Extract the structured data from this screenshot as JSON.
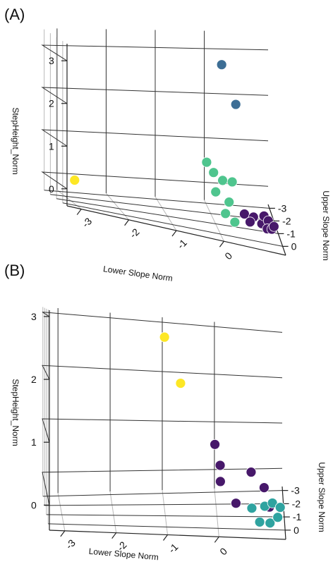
{
  "chart_data": [
    {
      "type": "scatter",
      "panel_label": "(A)",
      "xlabel": "Lower Slope Norm",
      "ylabel": "Upper Slope Norm",
      "zlabel": "StepHeight_Norm",
      "x_ticks": [
        "-3",
        "-2",
        "-1",
        "0"
      ],
      "y_ticks": [
        "-3",
        "-2",
        "-1",
        "0"
      ],
      "z_ticks": [
        "0",
        "1",
        "2",
        "3"
      ],
      "series": [
        {
          "color": "#3d6e95",
          "points": [
            [
              0.05,
              -0.25,
              3.05
            ],
            [
              0.35,
              -0.3,
              2.25
            ]
          ]
        },
        {
          "color": "#4fc58e",
          "points": [
            [
              -0.3,
              0.1,
              1.05
            ],
            [
              -0.15,
              0.05,
              0.85
            ],
            [
              0.05,
              -0.05,
              0.7
            ],
            [
              0.25,
              -0.05,
              0.7
            ],
            [
              -0.1,
              0.0,
              0.45
            ],
            [
              0.2,
              -0.2,
              0.25
            ],
            [
              0.1,
              0.05,
              0.05
            ],
            [
              0.3,
              0.0,
              -0.1
            ]
          ]
        },
        {
          "color": "#fde725",
          "points": [
            [
              -3.0,
              -0.4,
              0.15
            ]
          ]
        },
        {
          "color": "#47186a",
          "points": [
            [
              0.5,
              0.0,
              0.1
            ],
            [
              0.7,
              -0.1,
              0.05
            ],
            [
              0.6,
              0.2,
              0.0
            ],
            [
              0.85,
              0.15,
              0.0
            ],
            [
              0.9,
              0.1,
              0.15
            ],
            [
              1.0,
              0.0,
              0.05
            ],
            [
              0.95,
              0.3,
              -0.05
            ],
            [
              1.05,
              0.25,
              -0.05
            ],
            [
              1.1,
              0.2,
              0.0
            ]
          ]
        }
      ]
    },
    {
      "type": "scatter",
      "panel_label": "(B)",
      "xlabel": "Lower Slope Norm",
      "ylabel": "Upper Slope Norm",
      "zlabel": "StepHeight_Norm",
      "x_ticks": [
        "-3",
        "-2",
        "-1",
        "0"
      ],
      "y_ticks": [
        "-3",
        "-2",
        "-1",
        "0"
      ],
      "z_ticks": [
        "0",
        "1",
        "2",
        "3"
      ],
      "series": [
        {
          "color": "#fde725",
          "points": [
            [
              -1.0,
              -1.6,
              2.75
            ],
            [
              -0.7,
              -1.2,
              1.95
            ]
          ]
        },
        {
          "color": "#47186a",
          "points": [
            [
              -0.05,
              -0.6,
              0.95
            ],
            [
              0.05,
              -0.5,
              0.6
            ],
            [
              0.65,
              -0.5,
              0.5
            ],
            [
              0.05,
              -0.3,
              0.35
            ],
            [
              0.9,
              -0.4,
              0.25
            ],
            [
              0.35,
              -0.2,
              0.0
            ],
            [
              1.0,
              -0.2,
              -0.05
            ]
          ]
        },
        {
          "color": "#2fa3a0",
          "points": [
            [
              0.65,
              0.2,
              0.0
            ],
            [
              0.9,
              0.25,
              0.05
            ],
            [
              1.05,
              0.2,
              0.1
            ],
            [
              1.2,
              0.3,
              0.05
            ],
            [
              0.8,
              0.35,
              -0.2
            ],
            [
              1.0,
              0.4,
              -0.2
            ],
            [
              1.15,
              0.4,
              -0.1
            ]
          ]
        }
      ]
    }
  ]
}
